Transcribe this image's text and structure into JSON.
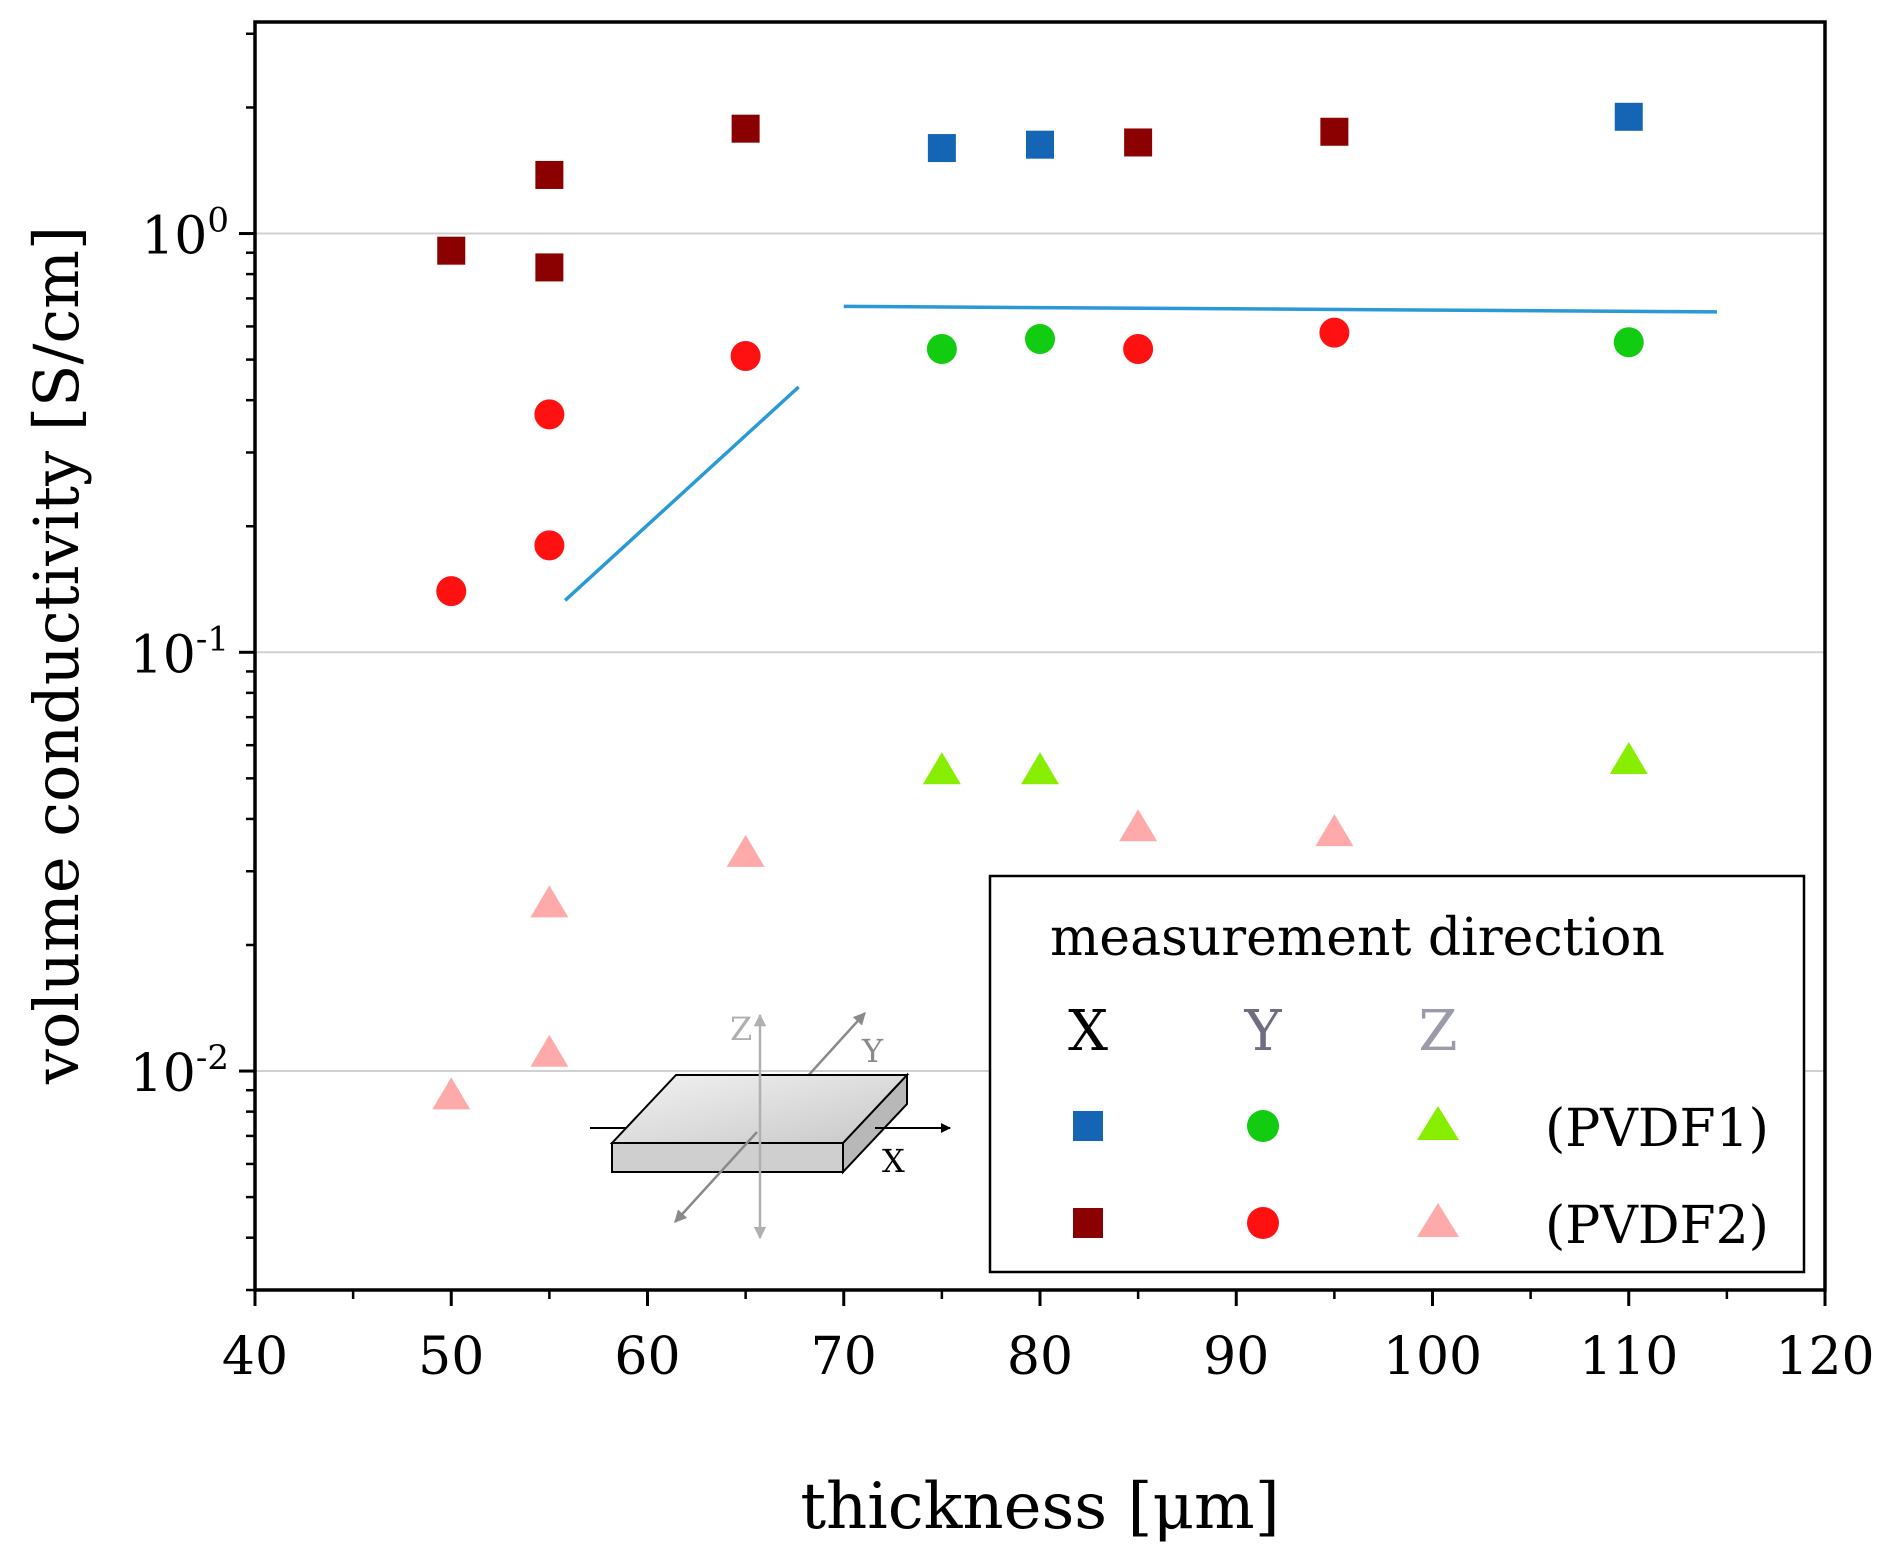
{
  "chart_data": {
    "type": "scatter",
    "xlabel": "thickness [μm]",
    "ylabel": "volume conductivity [S/cm]",
    "xlim": [
      40,
      120
    ],
    "ylim": [
      0.003,
      3.2
    ],
    "yscale": "log",
    "xticks": [
      40,
      50,
      60,
      70,
      80,
      90,
      100,
      110,
      120
    ],
    "yticks": [
      {
        "value": 1,
        "base": "10",
        "exp": "0"
      },
      {
        "value": 0.1,
        "base": "10",
        "exp": "-1"
      },
      {
        "value": 0.01,
        "base": "10",
        "exp": "-2"
      }
    ],
    "grid": "horizontal at decades",
    "series": [
      {
        "name": "PVDF1 X",
        "marker": "square",
        "color": "#1565b5",
        "points": [
          [
            75,
            1.6
          ],
          [
            80,
            1.63
          ],
          [
            110,
            1.9
          ]
        ]
      },
      {
        "name": "PVDF1 Y",
        "marker": "circle",
        "color": "#11cc11",
        "points": [
          [
            75,
            0.53
          ],
          [
            80,
            0.56
          ],
          [
            110,
            0.55
          ]
        ]
      },
      {
        "name": "PVDF1 Z",
        "marker": "triangle",
        "color": "#88ee00",
        "points": [
          [
            75,
            0.052
          ],
          [
            80,
            0.052
          ],
          [
            110,
            0.055
          ]
        ]
      },
      {
        "name": "PVDF2 X",
        "marker": "square",
        "color": "#8b0000",
        "points": [
          [
            50,
            0.91
          ],
          [
            55,
            0.83
          ],
          [
            55,
            1.38
          ],
          [
            65,
            1.78
          ],
          [
            85,
            1.65
          ],
          [
            95,
            1.75
          ]
        ]
      },
      {
        "name": "PVDF2 Y",
        "marker": "circle",
        "color": "#ff1111",
        "points": [
          [
            50,
            0.14
          ],
          [
            55,
            0.18
          ],
          [
            55,
            0.37
          ],
          [
            65,
            0.51
          ],
          [
            85,
            0.53
          ],
          [
            95,
            0.58
          ]
        ]
      },
      {
        "name": "PVDF2 Z",
        "marker": "triangle",
        "color": "#ffaaaa",
        "points": [
          [
            50,
            0.0087
          ],
          [
            55,
            0.011
          ],
          [
            55,
            0.025
          ],
          [
            65,
            0.033
          ],
          [
            85,
            0.038
          ],
          [
            95,
            0.037
          ]
        ]
      }
    ],
    "lines": [
      {
        "name": "trend-line-rising",
        "color": "#2a9ad6",
        "points": [
          [
            55.8,
            0.133
          ],
          [
            67.7,
            0.43
          ]
        ]
      },
      {
        "name": "trend-line-flat",
        "color": "#2a9ad6",
        "points": [
          [
            70,
            0.67
          ],
          [
            114.5,
            0.65
          ]
        ]
      }
    ],
    "legend": {
      "title": "measurement direction",
      "columns": [
        "X",
        "Y",
        "Z"
      ],
      "rows": [
        "(PVDF1)",
        "(PVDF2)"
      ],
      "placement": "bottom-right"
    },
    "inset": {
      "axis_x": "X",
      "axis_y": "Y",
      "axis_z": "Z"
    }
  }
}
